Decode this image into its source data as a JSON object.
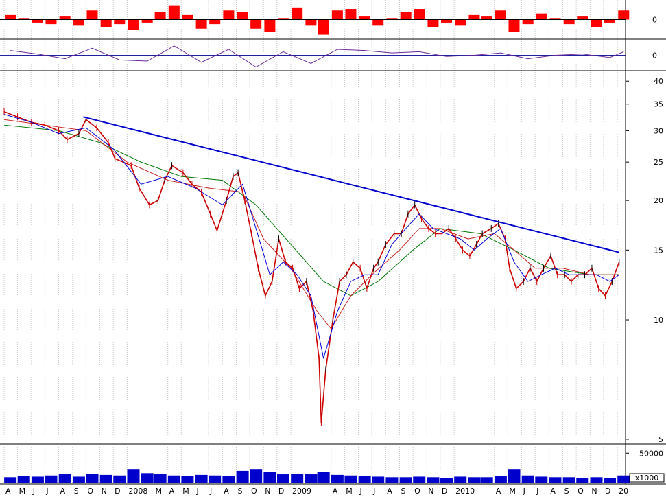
{
  "chart_data": [
    {
      "type": "bar",
      "panel": "momentum-oscillator",
      "zero_label": "0",
      "colors": {
        "bars": "#ff0000",
        "zero_line": "#000000"
      },
      "x": [
        "2007-04",
        "2007-05",
        "2007-06",
        "2007-07",
        "2007-08",
        "2007-09",
        "2007-10",
        "2007-11",
        "2007-12",
        "2008-01",
        "2008-02",
        "2008-03",
        "2008-04",
        "2008-05",
        "2008-06",
        "2008-07",
        "2008-08",
        "2008-09",
        "2008-10",
        "2008-11",
        "2008-12",
        "2009-01",
        "2009-02",
        "2009-03",
        "2009-04",
        "2009-05",
        "2009-06",
        "2009-07",
        "2009-08",
        "2009-09",
        "2009-10",
        "2009-11",
        "2009-12",
        "2010-01",
        "2010-02",
        "2010-03",
        "2010-04",
        "2010-05",
        "2010-06",
        "2010-07",
        "2010-08",
        "2010-09",
        "2010-10",
        "2010-11",
        "2010-12",
        "2011-01"
      ],
      "values": [
        0.3,
        0.1,
        -0.2,
        -0.3,
        0.2,
        -0.4,
        0.6,
        -0.5,
        -0.3,
        -0.7,
        -0.2,
        0.5,
        0.9,
        0.3,
        -0.6,
        -0.3,
        0.6,
        0.5,
        -0.6,
        -0.8,
        0.1,
        0.8,
        -0.4,
        -1.0,
        0.6,
        0.7,
        0.2,
        -0.4,
        0.1,
        0.5,
        0.7,
        -0.5,
        -0.2,
        -0.4,
        0.3,
        0.2,
        0.6,
        -0.8,
        -0.3,
        0.4,
        0.1,
        -0.3,
        0.2,
        -0.5,
        -0.2,
        0.6
      ],
      "ylim": [
        -1.2,
        1.2
      ]
    },
    {
      "type": "line",
      "panel": "oscillator-line",
      "zero_label": "0",
      "colors": {
        "line": "#6a2a9a",
        "zero_line": "#2020a0"
      },
      "x": [
        "2007-04",
        "2007-06",
        "2007-08",
        "2007-10",
        "2007-12",
        "2008-02",
        "2008-04",
        "2008-06",
        "2008-08",
        "2008-10",
        "2008-12",
        "2009-02",
        "2009-04",
        "2009-06",
        "2009-08",
        "2009-10",
        "2009-12",
        "2010-02",
        "2010-04",
        "2010-06",
        "2010-08",
        "2010-10",
        "2010-12",
        "2011-01"
      ],
      "values": [
        0.4,
        0.1,
        -0.3,
        0.6,
        -0.4,
        -0.5,
        0.8,
        -0.6,
        0.5,
        -1.0,
        0.3,
        -0.7,
        0.5,
        0.4,
        0.2,
        0.3,
        -0.1,
        0.0,
        0.2,
        -0.3,
        0.0,
        0.1,
        -0.2,
        0.3
      ],
      "ylim": [
        -1.2,
        1.2
      ]
    },
    {
      "type": "line",
      "panel": "price",
      "scale": "log",
      "y_ticks": [
        5,
        10,
        15,
        20,
        25,
        30,
        35,
        40
      ],
      "ylim": [
        4.9,
        42
      ],
      "colors": {
        "price": "#cc0000",
        "price_up": "#000000",
        "ma_short": "#0000dd",
        "ma_mid": "#cc2222",
        "ma_long": "#007700",
        "trendline": "#0000cc"
      },
      "series": [
        {
          "role": "price",
          "x": [
            "2007-04-01",
            "2007-05-01",
            "2007-06-01",
            "2007-07-01",
            "2007-08-01",
            "2007-08-20",
            "2007-09-15",
            "2007-10-01",
            "2007-10-25",
            "2007-11-20",
            "2007-12-05",
            "2008-01-10",
            "2008-01-28",
            "2008-02-20",
            "2008-03-10",
            "2008-03-25",
            "2008-04-10",
            "2008-05-05",
            "2008-05-25",
            "2008-06-15",
            "2008-07-05",
            "2008-07-20",
            "2008-08-10",
            "2008-08-25",
            "2008-09-05",
            "2008-09-20",
            "2008-10-05",
            "2008-10-20",
            "2008-11-05",
            "2008-11-20",
            "2008-12-05",
            "2008-12-20",
            "2009-01-05",
            "2009-01-20",
            "2009-02-05",
            "2009-02-20",
            "2009-03-05",
            "2009-03-10",
            "2009-03-20",
            "2009-04-05",
            "2009-04-20",
            "2009-05-05",
            "2009-05-20",
            "2009-06-05",
            "2009-06-20",
            "2009-07-05",
            "2009-07-15",
            "2009-08-01",
            "2009-08-20",
            "2009-09-05",
            "2009-09-20",
            "2009-10-05",
            "2009-10-20",
            "2009-11-05",
            "2009-11-20",
            "2009-12-05",
            "2009-12-20",
            "2010-01-05",
            "2010-01-20",
            "2010-02-05",
            "2010-02-20",
            "2010-03-05",
            "2010-03-25",
            "2010-04-10",
            "2010-04-25",
            "2010-05-05",
            "2010-05-20",
            "2010-06-05",
            "2010-06-20",
            "2010-07-05",
            "2010-07-20",
            "2010-08-05",
            "2010-08-20",
            "2010-09-05",
            "2010-09-20",
            "2010-10-05",
            "2010-10-20",
            "2010-11-05",
            "2010-11-20",
            "2010-12-05",
            "2010-12-20",
            "2011-01-05"
          ],
          "values": [
            33.5,
            32.5,
            31.5,
            31.0,
            30.0,
            28.5,
            29.5,
            32.0,
            30.5,
            28.0,
            25.5,
            24.5,
            21.5,
            19.5,
            20.0,
            22.5,
            24.5,
            23.5,
            22.0,
            21.0,
            18.5,
            16.8,
            20.0,
            23.0,
            23.5,
            20.0,
            16.5,
            13.5,
            11.5,
            12.5,
            16.0,
            14.0,
            13.5,
            12.0,
            12.5,
            10.5,
            8.0,
            5.5,
            7.5,
            10.0,
            12.5,
            13.0,
            14.0,
            13.5,
            12.0,
            13.5,
            14.0,
            15.5,
            16.5,
            16.5,
            18.5,
            19.5,
            18.0,
            17.0,
            16.5,
            16.5,
            17.0,
            16.0,
            15.0,
            14.5,
            15.5,
            16.5,
            17.0,
            17.5,
            16.0,
            13.5,
            12.0,
            12.5,
            13.5,
            12.5,
            13.5,
            14.5,
            13.0,
            13.0,
            12.5,
            13.0,
            13.0,
            13.5,
            12.0,
            11.5,
            12.5,
            14.0
          ]
        },
        {
          "role": "ma_short",
          "x": [
            "2007-04-01",
            "2007-06-01",
            "2007-08-01",
            "2007-10-01",
            "2007-12-01",
            "2008-02-01",
            "2008-04-01",
            "2008-06-01",
            "2008-08-01",
            "2008-09-15",
            "2008-10-15",
            "2008-11-15",
            "2008-12-15",
            "2009-01-15",
            "2009-02-15",
            "2009-03-15",
            "2009-04-15",
            "2009-05-15",
            "2009-06-15",
            "2009-07-15",
            "2009-08-15",
            "2009-09-15",
            "2009-10-15",
            "2009-11-15",
            "2009-12-15",
            "2010-01-15",
            "2010-02-15",
            "2010-03-15",
            "2010-04-15",
            "2010-05-15",
            "2010-06-15",
            "2010-07-15",
            "2010-08-15",
            "2010-09-15",
            "2010-10-15",
            "2010-11-15",
            "2010-12-15",
            "2011-01-05"
          ],
          "values": [
            33.0,
            31.5,
            29.5,
            30.5,
            27.0,
            22.0,
            23.0,
            21.5,
            19.5,
            22.0,
            17.0,
            13.0,
            14.0,
            13.0,
            11.5,
            8.0,
            10.5,
            12.5,
            13.0,
            13.0,
            15.5,
            17.0,
            18.5,
            17.0,
            16.5,
            16.0,
            15.0,
            16.0,
            17.0,
            14.0,
            12.5,
            13.0,
            13.5,
            13.0,
            13.0,
            13.0,
            12.5,
            13.0
          ]
        },
        {
          "role": "ma_mid",
          "x": [
            "2007-04-01",
            "2007-07-01",
            "2007-10-01",
            "2008-01-01",
            "2008-04-01",
            "2008-07-01",
            "2008-09-15",
            "2008-11-01",
            "2009-01-01",
            "2009-03-01",
            "2009-04-01",
            "2009-05-15",
            "2009-07-01",
            "2009-09-01",
            "2009-10-15",
            "2009-12-01",
            "2010-02-01",
            "2010-04-01",
            "2010-05-15",
            "2010-07-01",
            "2010-09-01",
            "2010-11-01",
            "2011-01-05"
          ],
          "values": [
            32.0,
            31.0,
            30.0,
            25.0,
            22.5,
            21.5,
            21.0,
            16.0,
            13.5,
            10.5,
            9.5,
            11.5,
            13.0,
            15.0,
            17.0,
            17.0,
            16.0,
            16.5,
            15.0,
            13.5,
            13.5,
            13.0,
            13.0
          ]
        },
        {
          "role": "ma_long",
          "x": [
            "2007-04-01",
            "2007-08-01",
            "2007-11-01",
            "2008-02-01",
            "2008-05-01",
            "2008-08-01",
            "2008-10-15",
            "2009-01-01",
            "2009-03-15",
            "2009-05-15",
            "2009-07-15",
            "2009-10-01",
            "2009-12-01",
            "2010-03-01",
            "2010-05-15",
            "2010-08-01",
            "2010-11-01",
            "2011-01-05"
          ],
          "values": [
            31.0,
            30.0,
            28.0,
            25.0,
            23.0,
            22.5,
            19.5,
            15.5,
            12.5,
            11.5,
            12.5,
            15.0,
            17.0,
            16.5,
            15.0,
            13.5,
            13.0,
            13.0
          ]
        },
        {
          "role": "trendline",
          "x": [
            "2007-09-25",
            "2011-01-05"
          ],
          "values": [
            32.5,
            14.8
          ]
        }
      ]
    },
    {
      "type": "bar",
      "panel": "volume",
      "y_ticks": [
        50000
      ],
      "unit_label": "x1000",
      "ylim": [
        0,
        62000
      ],
      "colors": {
        "bars": "#0000cc"
      },
      "x": [
        "2007-04",
        "2007-05",
        "2007-06",
        "2007-07",
        "2007-08",
        "2007-09",
        "2007-10",
        "2007-11",
        "2007-12",
        "2008-01",
        "2008-02",
        "2008-03",
        "2008-04",
        "2008-05",
        "2008-06",
        "2008-07",
        "2008-08",
        "2008-09",
        "2008-10",
        "2008-11",
        "2008-12",
        "2009-01",
        "2009-02",
        "2009-03",
        "2009-04",
        "2009-05",
        "2009-06",
        "2009-07",
        "2009-08",
        "2009-09",
        "2009-10",
        "2009-11",
        "2009-12",
        "2010-01",
        "2010-02",
        "2010-03",
        "2010-04",
        "2010-05",
        "2010-06",
        "2010-07",
        "2010-08",
        "2010-09",
        "2010-10",
        "2010-11",
        "2010-12",
        "2011-01"
      ],
      "values": [
        9000,
        11000,
        10000,
        12000,
        14000,
        10000,
        15000,
        13000,
        12000,
        22000,
        16000,
        14000,
        12000,
        11000,
        13000,
        12000,
        11000,
        20000,
        22000,
        18000,
        14000,
        15000,
        14000,
        18000,
        13000,
        12000,
        11000,
        10000,
        9000,
        9000,
        10000,
        9000,
        8000,
        10000,
        9000,
        9000,
        11000,
        22000,
        12000,
        10000,
        9000,
        9000,
        8000,
        9000,
        8000,
        12000
      ]
    }
  ],
  "x_axis": {
    "labels": [
      {
        "date": "2007-04-01",
        "text": "A"
      },
      {
        "date": "2007-05-01",
        "text": "M"
      },
      {
        "date": "2007-06-01",
        "text": "J"
      },
      {
        "date": "2007-07-01",
        "text": "J"
      },
      {
        "date": "2007-08-01",
        "text": "A"
      },
      {
        "date": "2007-09-01",
        "text": "S"
      },
      {
        "date": "2007-10-01",
        "text": "O"
      },
      {
        "date": "2007-11-01",
        "text": "N"
      },
      {
        "date": "2007-12-01",
        "text": "D"
      },
      {
        "date": "2008-01-01",
        "text": "2008"
      },
      {
        "date": "2008-03-01",
        "text": "M"
      },
      {
        "date": "2008-04-01",
        "text": "A"
      },
      {
        "date": "2008-05-01",
        "text": "M"
      },
      {
        "date": "2008-06-01",
        "text": "J"
      },
      {
        "date": "2008-07-01",
        "text": "J"
      },
      {
        "date": "2008-08-01",
        "text": "A"
      },
      {
        "date": "2008-09-01",
        "text": "S"
      },
      {
        "date": "2008-10-01",
        "text": "O"
      },
      {
        "date": "2008-11-01",
        "text": "N"
      },
      {
        "date": "2008-12-01",
        "text": "D"
      },
      {
        "date": "2009-01-01",
        "text": "2009"
      },
      {
        "date": "2009-04-01",
        "text": "A"
      },
      {
        "date": "2009-05-01",
        "text": "M"
      },
      {
        "date": "2009-06-01",
        "text": "J"
      },
      {
        "date": "2009-07-01",
        "text": "J"
      },
      {
        "date": "2009-08-01",
        "text": "A"
      },
      {
        "date": "2009-09-01",
        "text": "S"
      },
      {
        "date": "2009-10-01",
        "text": "O"
      },
      {
        "date": "2009-11-01",
        "text": "N"
      },
      {
        "date": "2009-12-01",
        "text": "D"
      },
      {
        "date": "2010-01-01",
        "text": "2010"
      },
      {
        "date": "2010-04-01",
        "text": "A"
      },
      {
        "date": "2010-05-01",
        "text": "M"
      },
      {
        "date": "2010-06-01",
        "text": "J"
      },
      {
        "date": "2010-07-01",
        "text": "J"
      },
      {
        "date": "2010-08-01",
        "text": "A"
      },
      {
        "date": "2010-09-01",
        "text": "S"
      },
      {
        "date": "2010-10-01",
        "text": "O"
      },
      {
        "date": "2010-11-01",
        "text": "N"
      },
      {
        "date": "2010-12-01",
        "text": "D"
      },
      {
        "date": "2011-01-01",
        "text": "20"
      }
    ],
    "grid": "dotted-vertical",
    "grid_color": "#c8c8c8"
  }
}
